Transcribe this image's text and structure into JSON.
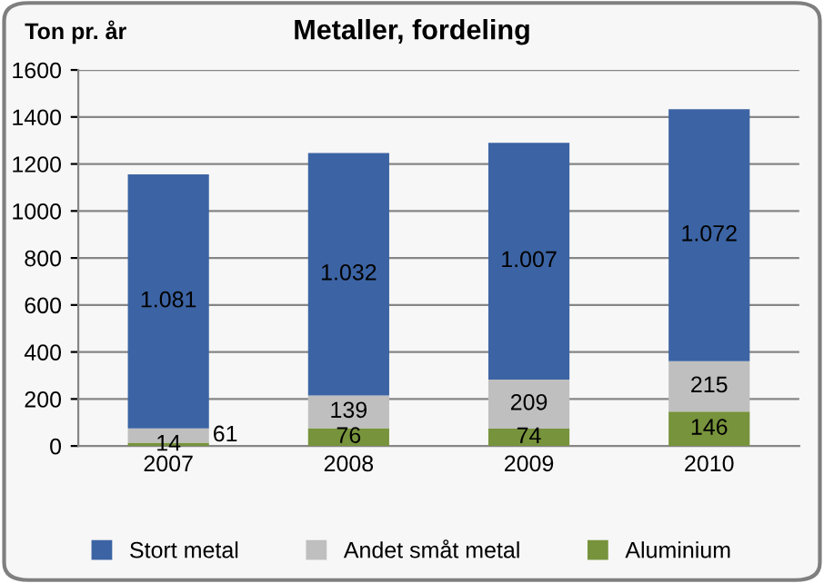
{
  "chart_data": {
    "type": "bar",
    "stacked": true,
    "title": "Metaller, fordeling",
    "ylabel": "Ton pr. år",
    "categories": [
      "2007",
      "2008",
      "2009",
      "2010"
    ],
    "series": [
      {
        "name": "Aluminium",
        "color": "#77933c",
        "values": [
          14,
          76,
          74,
          146
        ],
        "value_labels": [
          "14",
          "76",
          "74",
          "146"
        ]
      },
      {
        "name": "Andet småt metal",
        "color": "#bfbfbf",
        "values": [
          61,
          139,
          209,
          215
        ],
        "value_labels": [
          "61",
          "139",
          "209",
          "215"
        ]
      },
      {
        "name": "Stort metal",
        "color": "#3c64a4",
        "values": [
          1081,
          1032,
          1007,
          1072
        ],
        "value_labels": [
          "1.081",
          "1.032",
          "1.007",
          "1.072"
        ]
      }
    ],
    "ylim": [
      0,
      1600
    ],
    "yticks": [
      0,
      200,
      400,
      600,
      800,
      1000,
      1200,
      1400,
      1600
    ],
    "grid": "y",
    "legend": "bottom"
  }
}
